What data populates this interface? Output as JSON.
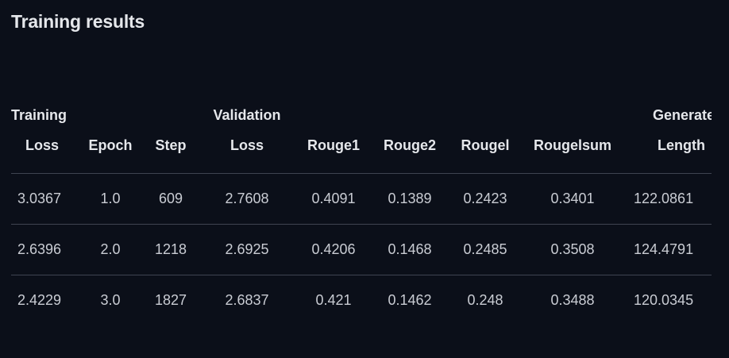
{
  "heading": "Training results",
  "table": {
    "headers": [
      {
        "line1": "Training",
        "line2": "Loss"
      },
      {
        "line1": "",
        "line2": "Epoch"
      },
      {
        "line1": "",
        "line2": "Step"
      },
      {
        "line1": "Validation",
        "line2": "Loss"
      },
      {
        "line1": "",
        "line2": "Rouge1"
      },
      {
        "line1": "",
        "line2": "Rouge2"
      },
      {
        "line1": "",
        "line2": "Rougel"
      },
      {
        "line1": "",
        "line2": "Rougelsum"
      },
      {
        "line1": "Generated",
        "line2": "Length"
      }
    ],
    "rows": [
      [
        "3.0367",
        "1.0",
        "609",
        "2.7608",
        "0.4091",
        "0.1389",
        "0.2423",
        "0.3401",
        "122.0861"
      ],
      [
        "2.6396",
        "2.0",
        "1218",
        "2.6925",
        "0.4206",
        "0.1468",
        "0.2485",
        "0.3508",
        "124.4791"
      ],
      [
        "2.4229",
        "3.0",
        "1827",
        "2.6837",
        "0.421",
        "0.1462",
        "0.248",
        "0.3488",
        "120.0345"
      ]
    ]
  }
}
